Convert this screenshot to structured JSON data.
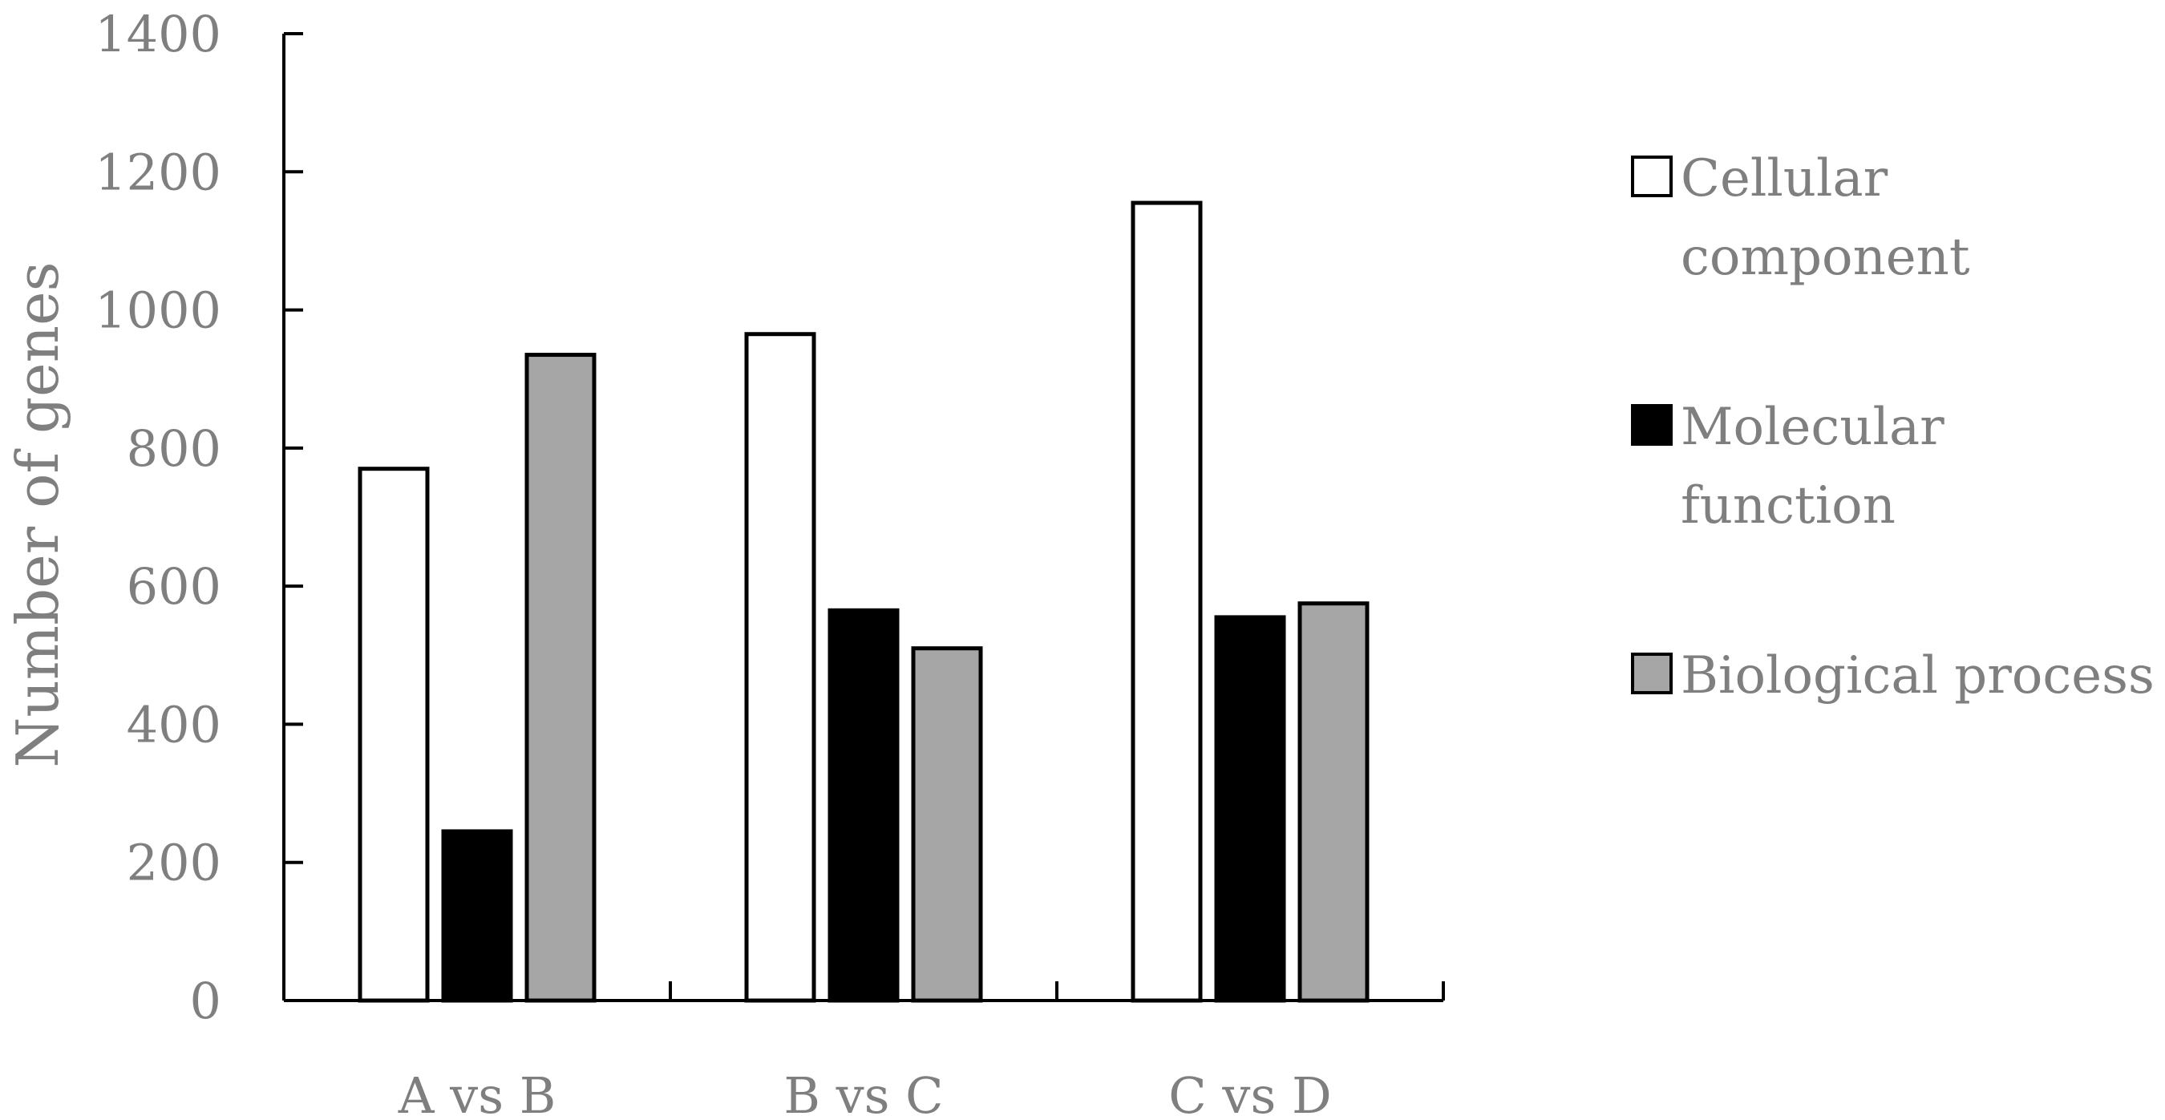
{
  "chart_data": {
    "type": "bar",
    "title": "",
    "xlabel": "",
    "ylabel": "Number of genes",
    "ylim": [
      0,
      1400
    ],
    "yticks": [
      "0",
      "200",
      "400",
      "600",
      "800",
      "1000",
      "1200",
      "1400"
    ],
    "categories": [
      "A vs B",
      "B vs C",
      "C vs D"
    ],
    "series": [
      {
        "name": "Cellular component",
        "legend_lines": [
          " Cellular",
          "component"
        ],
        "values": [
          770,
          965,
          1155
        ],
        "color": "#ffffff"
      },
      {
        "name": "Molecular function",
        "legend_lines": [
          "Molecular",
          "function"
        ],
        "values": [
          245,
          565,
          555
        ],
        "color": "#000000"
      },
      {
        "name": "Biological process",
        "legend_lines": [
          "Biological process"
        ],
        "values": [
          935,
          510,
          575
        ],
        "color": "#a6a6a6"
      }
    ],
    "grid": false,
    "legend_position": "right"
  }
}
